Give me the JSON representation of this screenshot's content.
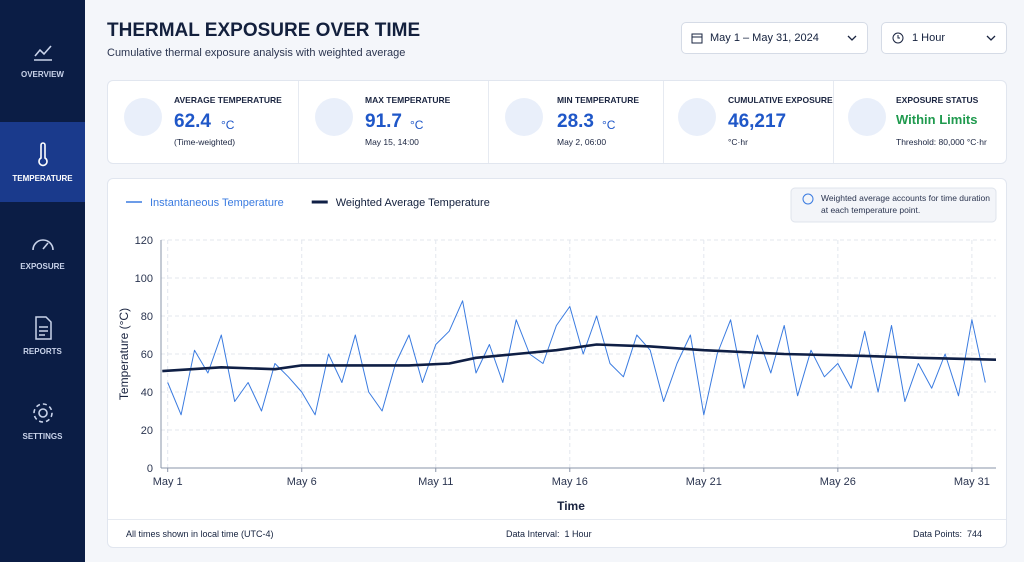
{
  "sidebar": {
    "items": [
      "OVERVIEW",
      "TEMPERATURE",
      "EXPOSURE",
      "REPORTS",
      "SETTINGS"
    ]
  },
  "header": {
    "title": "THERMAL EXPOSURE OVER TIME",
    "subtitle": "Cumulative thermal exposure analysis with weighted average",
    "date_range": "May 1 – May 31, 2024",
    "interval": "1 Hour"
  },
  "stats": [
    {
      "label": "AVERAGE TEMPERATURE",
      "value": 62.4,
      "unit": "°C",
      "note": "(Time-weighted)"
    },
    {
      "label": "MAX TEMPERATURE",
      "value": 91.7,
      "unit": "°C",
      "note": "May 15, 14:00"
    },
    {
      "label": "MIN TEMPERATURE",
      "value": 28.3,
      "unit": "°C",
      "note": "May 2, 06:00"
    },
    {
      "label": "CUMULATIVE EXPOSURE",
      "value": "46,217",
      "note": "°C·hr"
    },
    {
      "label": "EXPOSURE STATUS",
      "value": "Within Limits",
      "note": "Threshold: 80,000 °C·hr"
    }
  ],
  "chart_data": {
    "type": "line",
    "ylabel": "Temperature (°C)",
    "xlabel": "Time",
    "info": "Weighted average accounts for time duration at each temperature point.",
    "series": [
      {
        "name": "Instantaneous Temperature",
        "color": "#3a7be0",
        "x": [
          1,
          1.5,
          2,
          2.5,
          3,
          3.5,
          4,
          4.5,
          5,
          5.5,
          6,
          6.5,
          7,
          7.5,
          8,
          8.5,
          9,
          9.5,
          10,
          10.5,
          11,
          11.5,
          12,
          12.5,
          13,
          13.5,
          14,
          14.5,
          15,
          15.5,
          16,
          16.5,
          17,
          17.5,
          18,
          18.5,
          19,
          19.5,
          20,
          20.5,
          21,
          21.5,
          22,
          22.5,
          23,
          23.5,
          24,
          24.5,
          25,
          25.5,
          26,
          26.5,
          27,
          27.5,
          28,
          28.5,
          29,
          29.5,
          30,
          30.5,
          31,
          31.5
        ],
        "values": [
          45,
          28,
          62,
          50,
          70,
          35,
          45,
          30,
          55,
          48,
          40,
          28,
          60,
          45,
          70,
          40,
          30,
          55,
          70,
          45,
          65,
          72,
          88,
          50,
          65,
          45,
          78,
          60,
          55,
          75,
          85,
          60,
          80,
          55,
          48,
          70,
          62,
          35,
          55,
          70,
          28,
          60,
          78,
          42,
          70,
          50,
          75,
          38,
          62,
          48,
          55,
          42,
          72,
          40,
          75,
          35,
          55,
          42,
          60,
          38,
          78,
          45
        ]
      },
      {
        "name": "Weighted Average Temperature",
        "color": "#0f1f45",
        "x": [
          0.8,
          3,
          5,
          6,
          8,
          10,
          11.5,
          12.5,
          14,
          15.5,
          17,
          19,
          21,
          24,
          27,
          29,
          31.9
        ],
        "values": [
          51,
          53,
          52,
          54,
          54,
          54,
          55,
          58,
          60,
          62,
          65,
          64,
          62,
          60,
          59,
          58,
          57
        ]
      }
    ],
    "xlim": [
      0.75,
      31.9
    ],
    "xticks": [
      {
        "value": 1,
        "label": "May 1"
      },
      {
        "value": 6,
        "label": "May 6"
      },
      {
        "value": 11,
        "label": "May 11"
      },
      {
        "value": 16,
        "label": "May 16"
      },
      {
        "value": 21,
        "label": "May 21"
      },
      {
        "value": 26,
        "label": "May 26"
      },
      {
        "value": 31,
        "label": "May 31"
      }
    ],
    "ylim": [
      0,
      120
    ],
    "yticks": [
      0,
      20,
      40,
      60,
      80,
      100,
      120
    ],
    "grid": true
  },
  "footer": {
    "timezone": "All times shown in local time (UTC-4)",
    "interval_label": "Data Interval:",
    "interval": "1 Hour",
    "points_label": "Data Points:",
    "points": 744
  }
}
